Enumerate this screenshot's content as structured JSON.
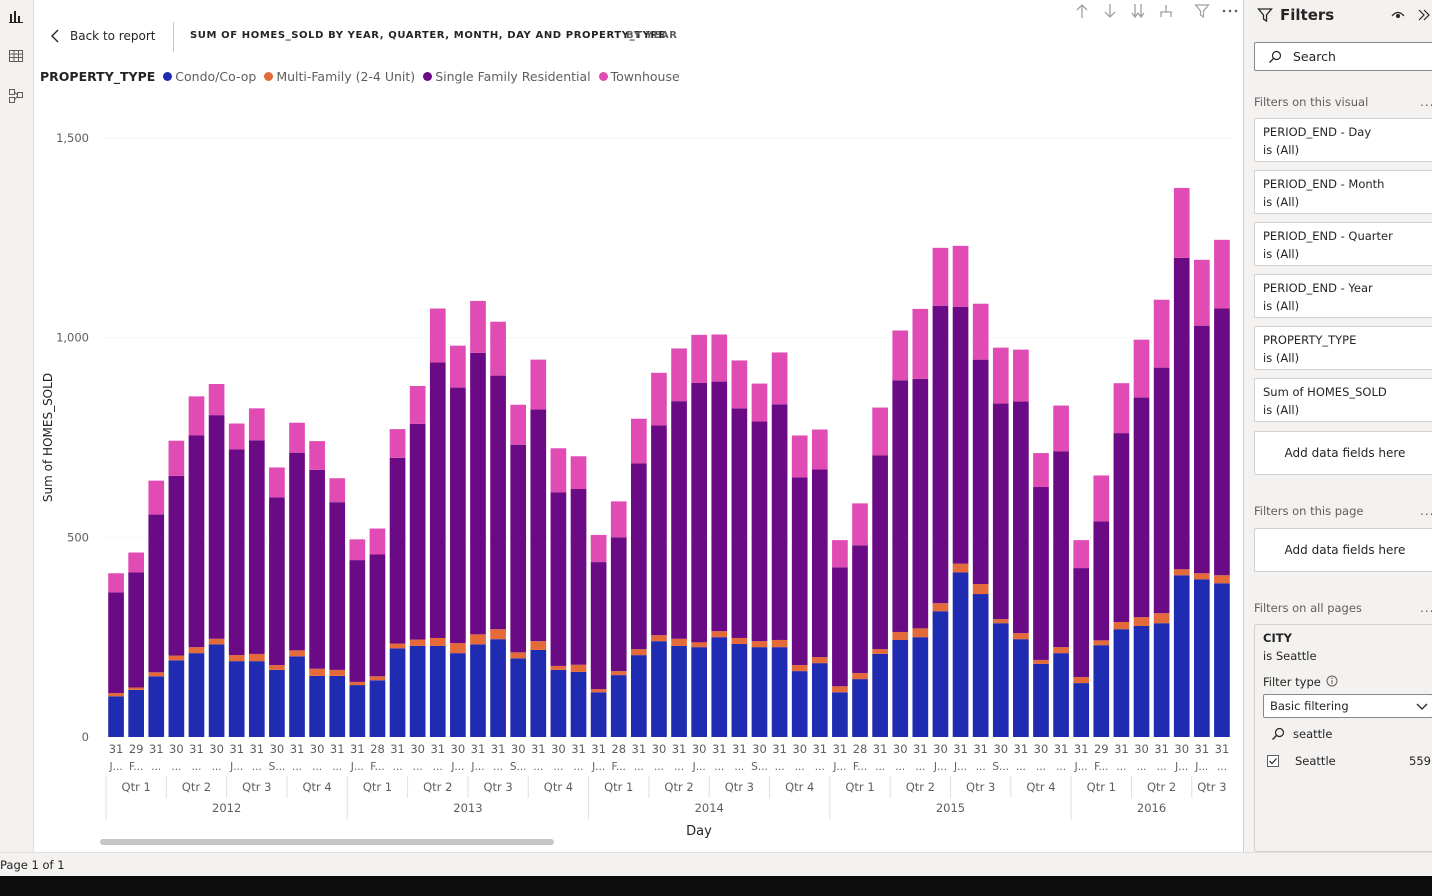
{
  "header": {
    "back_label": "Back to report",
    "title": "SUM OF HOMES_SOLD BY YEAR, QUARTER, MONTH, DAY AND PROPERTY_TYPE",
    "drill_level": "BY YEAR"
  },
  "visual_icons": [
    "arrow-up-icon",
    "arrow-down-icon",
    "double-arrow-down-icon",
    "expand-hierarchy-icon",
    "filter-icon",
    "more-options-icon"
  ],
  "legend": {
    "title": "PROPERTY_TYPE",
    "items": [
      {
        "label": "Condo/Co-op",
        "color": "#1f2bb0"
      },
      {
        "label": "Multi-Family (2-4 Unit)",
        "color": "#e56a3a"
      },
      {
        "label": "Single Family Residential",
        "color": "#6b0a85"
      },
      {
        "label": "Townhouse",
        "color": "#e04bb4"
      }
    ]
  },
  "chart_data": {
    "type": "bar",
    "stacked": true,
    "ylabel": "Sum of HOMES_SOLD",
    "xlabel": "Day",
    "ylim": [
      0,
      1500
    ],
    "yticks": [
      0,
      500,
      1000,
      1500
    ],
    "grid": true,
    "legend_position": "top-left",
    "colors": {
      "condo": "#1f2bb0",
      "multi": "#e56a3a",
      "single": "#6b0a85",
      "town": "#e04bb4"
    },
    "day_labels": [
      "31",
      "29",
      "31",
      "30",
      "31",
      "30",
      "31",
      "31",
      "30",
      "31",
      "30",
      "31",
      "31",
      "28",
      "31",
      "30",
      "31",
      "30",
      "31",
      "31",
      "30",
      "31",
      "30",
      "31",
      "31",
      "28",
      "31",
      "30",
      "31",
      "30",
      "31",
      "31",
      "30",
      "31",
      "30",
      "31",
      "31",
      "28",
      "31",
      "30",
      "31",
      "30",
      "31",
      "31",
      "30",
      "31",
      "30",
      "31",
      "31",
      "29",
      "31",
      "30",
      "31",
      "30",
      "31",
      "31"
    ],
    "month_labels": [
      "J...",
      "F...",
      "...",
      "...",
      "...",
      "...",
      "J...",
      "...",
      "S...",
      "...",
      "...",
      "...",
      "J...",
      "F...",
      "...",
      "...",
      "...",
      "J...",
      "J...",
      "...",
      "S...",
      "...",
      "...",
      "...",
      "J...",
      "F...",
      "...",
      "...",
      "...",
      "J...",
      "...",
      "...",
      "S...",
      "...",
      "...",
      "...",
      "J...",
      "F...",
      "...",
      "...",
      "...",
      "J...",
      "J...",
      "...",
      "S...",
      "...",
      "...",
      "...",
      "J...",
      "F...",
      "...",
      "...",
      "...",
      "J...",
      "J...",
      "..."
    ],
    "quarters": [
      {
        "label": "Qtr 1",
        "start": 0,
        "count": 3
      },
      {
        "label": "Qtr 2",
        "start": 3,
        "count": 3
      },
      {
        "label": "Qtr 3",
        "start": 6,
        "count": 3
      },
      {
        "label": "Qtr 4",
        "start": 9,
        "count": 3
      },
      {
        "label": "Qtr 1",
        "start": 12,
        "count": 3
      },
      {
        "label": "Qtr 2",
        "start": 15,
        "count": 3
      },
      {
        "label": "Qtr 3",
        "start": 18,
        "count": 3
      },
      {
        "label": "Qtr 4",
        "start": 21,
        "count": 3
      },
      {
        "label": "Qtr 1",
        "start": 24,
        "count": 3
      },
      {
        "label": "Qtr 2",
        "start": 27,
        "count": 3
      },
      {
        "label": "Qtr 3",
        "start": 30,
        "count": 3
      },
      {
        "label": "Qtr 4",
        "start": 33,
        "count": 3
      },
      {
        "label": "Qtr 1",
        "start": 36,
        "count": 3
      },
      {
        "label": "Qtr 2",
        "start": 39,
        "count": 3
      },
      {
        "label": "Qtr 3",
        "start": 42,
        "count": 3
      },
      {
        "label": "Qtr 4",
        "start": 45,
        "count": 3
      },
      {
        "label": "Qtr 1",
        "start": 48,
        "count": 3
      },
      {
        "label": "Qtr 2",
        "start": 51,
        "count": 3
      },
      {
        "label": "Qtr 3",
        "start": 54,
        "count": 2
      }
    ],
    "years": [
      {
        "label": "2012",
        "start": 0,
        "count": 12
      },
      {
        "label": "2013",
        "start": 12,
        "count": 12
      },
      {
        "label": "2014",
        "start": 24,
        "count": 12
      },
      {
        "label": "2015",
        "start": 36,
        "count": 12
      },
      {
        "label": "2016",
        "start": 48,
        "count": 8
      }
    ],
    "series": [
      {
        "name": "Condo/Co-op",
        "key": "condo",
        "values": [
          102,
          118,
          152,
          192,
          210,
          232,
          190,
          190,
          168,
          202,
          153,
          153,
          130,
          142,
          222,
          228,
          228,
          210,
          232,
          245,
          197,
          218,
          168,
          163,
          112,
          155,
          205,
          240,
          228,
          225,
          250,
          233,
          225,
          225,
          165,
          185,
          112,
          145,
          208,
          243,
          250,
          315,
          412,
          358,
          285,
          245,
          183,
          210,
          135,
          230,
          270,
          278,
          285,
          405,
          395,
          385
        ]
      },
      {
        "name": "Multi-Family (2-4 Unit)",
        "key": "multi",
        "values": [
          8,
          6,
          10,
          12,
          15,
          14,
          15,
          18,
          12,
          15,
          18,
          15,
          8,
          10,
          12,
          16,
          20,
          25,
          25,
          25,
          15,
          22,
          10,
          18,
          8,
          10,
          15,
          15,
          18,
          12,
          15,
          15,
          15,
          18,
          15,
          15,
          15,
          15,
          12,
          20,
          22,
          20,
          22,
          25,
          10,
          15,
          10,
          15,
          15,
          12,
          18,
          22,
          25,
          15,
          15,
          20
        ]
      },
      {
        "name": "Single Family Residential",
        "key": "single",
        "values": [
          252,
          288,
          395,
          450,
          530,
          560,
          515,
          535,
          420,
          495,
          498,
          420,
          305,
          305,
          465,
          540,
          690,
          640,
          705,
          635,
          520,
          580,
          435,
          440,
          318,
          335,
          465,
          525,
          595,
          650,
          625,
          575,
          550,
          590,
          470,
          470,
          298,
          320,
          485,
          630,
          625,
          745,
          643,
          562,
          540,
          580,
          433,
          490,
          273,
          298,
          473,
          550,
          615,
          780,
          620,
          668
        ]
      },
      {
        "name": "Townhouse",
        "key": "town",
        "values": [
          48,
          50,
          85,
          88,
          98,
          78,
          65,
          80,
          75,
          75,
          72,
          60,
          52,
          65,
          72,
          95,
          135,
          105,
          130,
          135,
          100,
          125,
          110,
          82,
          68,
          90,
          112,
          132,
          132,
          120,
          118,
          120,
          95,
          130,
          105,
          100,
          68,
          105,
          120,
          125,
          175,
          145,
          153,
          140,
          140,
          130,
          85,
          115,
          70,
          115,
          125,
          145,
          170,
          175,
          165,
          172
        ]
      }
    ]
  },
  "footer": {
    "page_indicator": "Page 1 of 1"
  },
  "filters_pane": {
    "title": "Filters",
    "search_placeholder": "Search",
    "visual_section": "Filters on this visual",
    "page_section": "Filters on this page",
    "all_pages_section": "Filters on all pages",
    "more": "...",
    "visual_filters": [
      {
        "name": "PERIOD_END - Day",
        "value": "is (All)"
      },
      {
        "name": "PERIOD_END - Month",
        "value": "is (All)"
      },
      {
        "name": "PERIOD_END - Quarter",
        "value": "is (All)"
      },
      {
        "name": "PERIOD_END - Year",
        "value": "is (All)"
      },
      {
        "name": "PROPERTY_TYPE",
        "value": "is (All)"
      },
      {
        "name": "Sum of HOMES_SOLD",
        "value": "is (All)"
      }
    ],
    "add_fields_label": "Add data fields here",
    "city_filter": {
      "name": "CITY",
      "value": "is Seattle",
      "filter_type_label": "Filter type",
      "filter_type_value": "Basic filtering",
      "search_value": "seattle",
      "options": [
        {
          "label": "Seattle",
          "count": "559",
          "checked": true
        }
      ]
    }
  }
}
